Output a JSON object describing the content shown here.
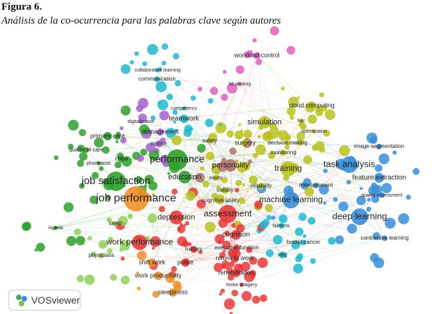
{
  "caption": {
    "label": "Figura 6.",
    "title": "Análisis de la co-ocurrencia para las palabras clave según autores"
  },
  "network": {
    "nodes": [
      {
        "label": "workload control"
      },
      {
        "label": "collaborative learning"
      },
      {
        "label": "communication"
      },
      {
        "label": "3d printing"
      },
      {
        "label": "cloud computing"
      },
      {
        "label": "competency"
      },
      {
        "label": "teamwork"
      },
      {
        "label": "simulation"
      },
      {
        "label": "hpc"
      },
      {
        "label": "digitalization"
      },
      {
        "label": "management"
      },
      {
        "label": "optimization"
      },
      {
        "label": "primary care"
      },
      {
        "label": "safety"
      },
      {
        "label": "surgery"
      },
      {
        "label": "decision making"
      },
      {
        "label": "image segmentation"
      },
      {
        "label": "quality of care"
      },
      {
        "label": "nurse"
      },
      {
        "label": "monitoring"
      },
      {
        "label": "china"
      },
      {
        "label": "performance"
      },
      {
        "label": "pharmacist"
      },
      {
        "label": "personality"
      },
      {
        "label": "task analysis"
      },
      {
        "label": "training"
      },
      {
        "label": "job satisfaction"
      },
      {
        "label": "education"
      },
      {
        "label": "equity"
      },
      {
        "label": "feature extraction"
      },
      {
        "label": "reliability"
      },
      {
        "label": "measurement"
      },
      {
        "label": "validity"
      },
      {
        "label": "job performance"
      },
      {
        "label": "cognitive ability"
      },
      {
        "label": "machine learning"
      },
      {
        "label": "quality assessment"
      },
      {
        "label": "assessment"
      },
      {
        "label": "depression"
      },
      {
        "label": "deep learning"
      },
      {
        "label": "sleep"
      },
      {
        "label": "fairness"
      },
      {
        "label": "nigeria"
      },
      {
        "label": "cognition"
      },
      {
        "label": "contrastive learning"
      },
      {
        "label": "work performance"
      },
      {
        "label": "breast cancer"
      },
      {
        "label": "executive function"
      },
      {
        "label": "military"
      },
      {
        "label": "physicians"
      },
      {
        "label": "eeg"
      },
      {
        "label": "return to work"
      },
      {
        "label": "shift work"
      },
      {
        "label": "police"
      },
      {
        "label": "rehabilitation"
      },
      {
        "label": "work productivity"
      },
      {
        "label": "motor imagery"
      },
      {
        "label": "sleepiness"
      }
    ]
  },
  "logo": {
    "text": "VOSviewer"
  }
}
